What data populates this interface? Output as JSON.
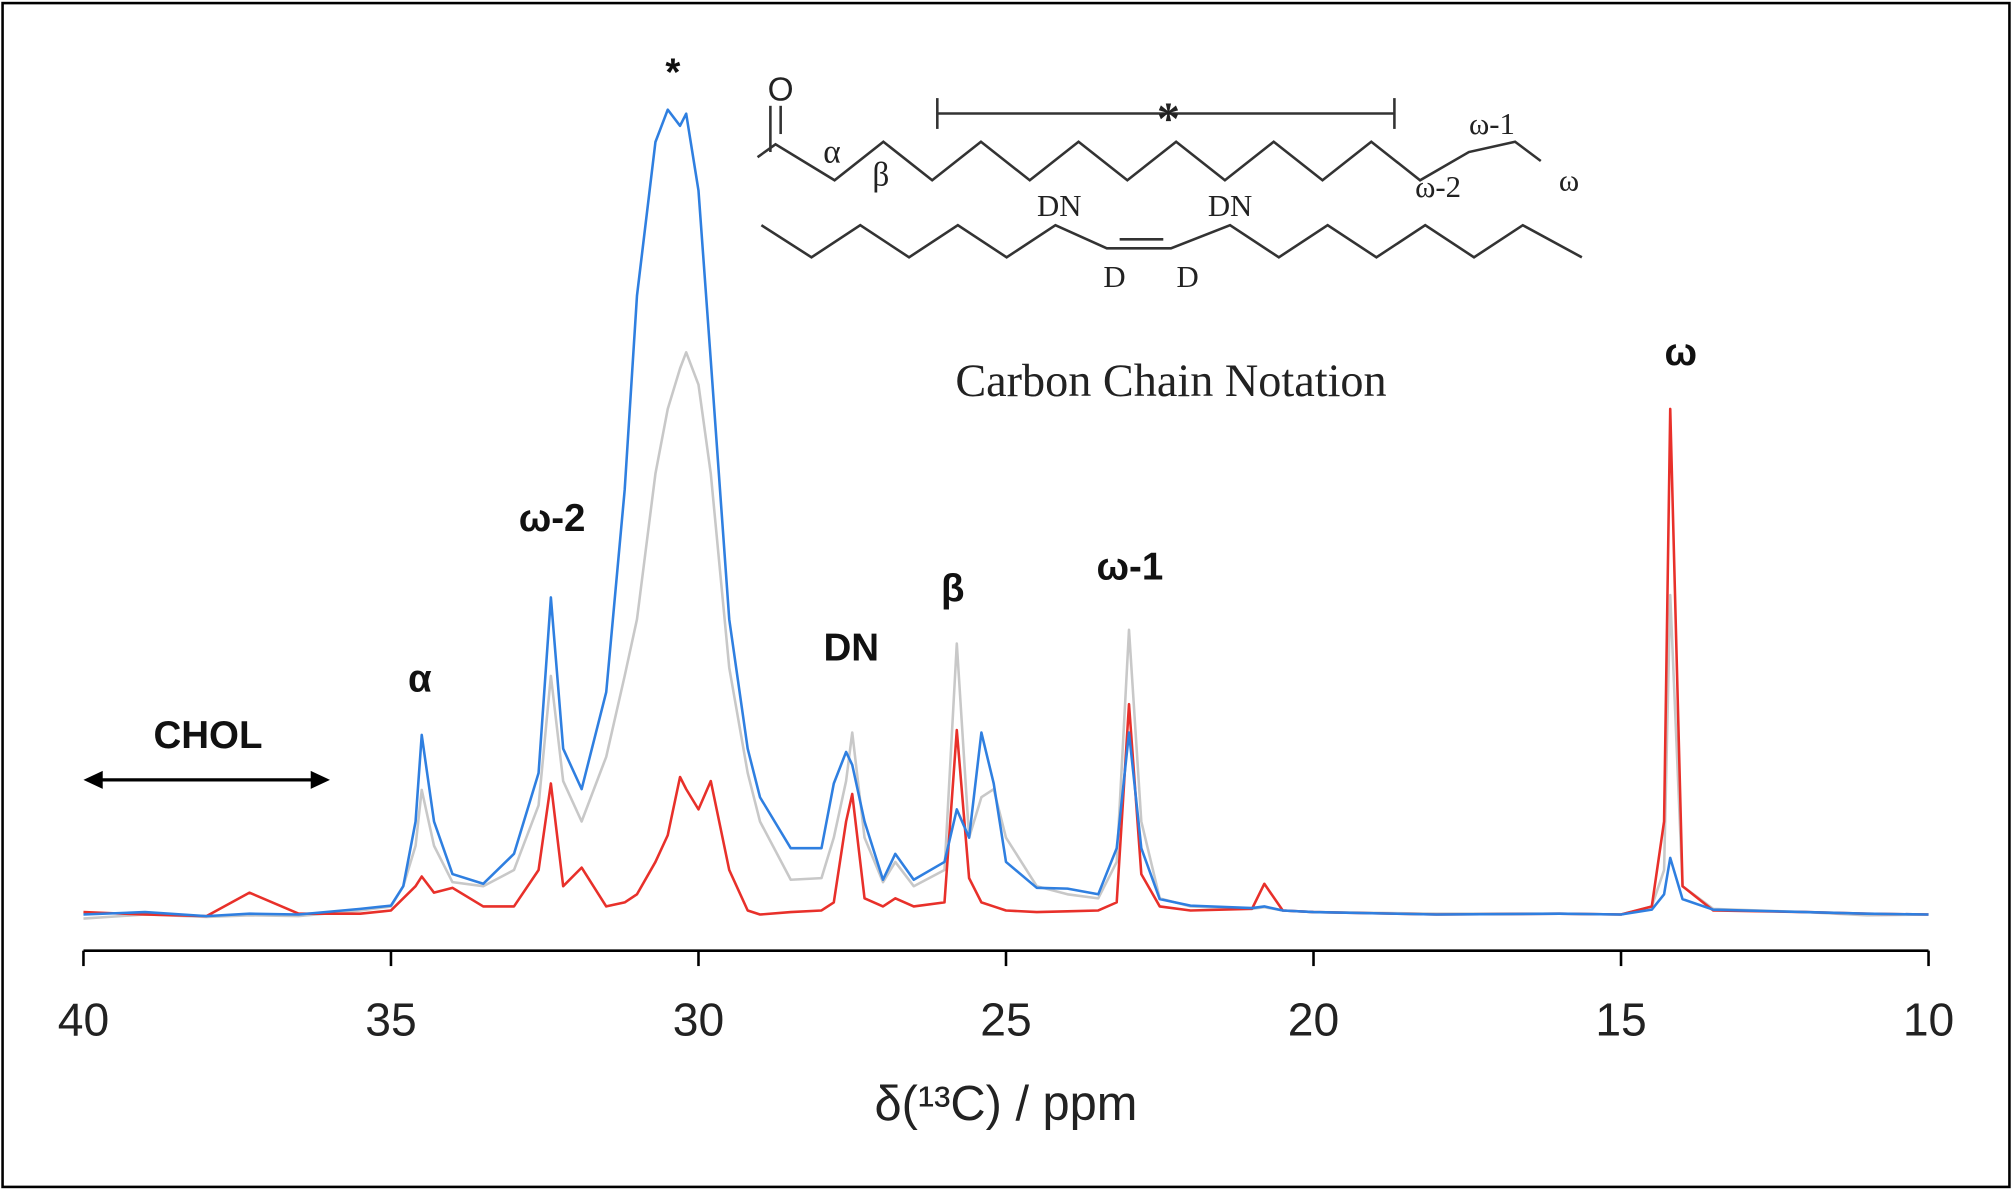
{
  "chart_data": {
    "type": "line",
    "x_label": "δ(¹³C) / ppm",
    "xlim": [
      40,
      10
    ],
    "xticks": [
      40,
      35,
      30,
      25,
      20,
      15,
      10
    ],
    "ylim": [
      0,
      100
    ],
    "x": [
      40,
      39,
      38,
      37.3,
      36.5,
      35.5,
      35,
      34.8,
      34.6,
      34.5,
      34.3,
      34,
      33.5,
      33,
      32.6,
      32.4,
      32.2,
      31.9,
      31.5,
      31.2,
      31,
      30.7,
      30.5,
      30.3,
      30.2,
      30,
      29.8,
      29.5,
      29.2,
      29,
      28.5,
      28,
      27.8,
      27.6,
      27.5,
      27.3,
      27,
      26.8,
      26.5,
      26,
      25.8,
      25.6,
      25.4,
      25.2,
      25,
      24.5,
      24,
      23.5,
      23.2,
      23,
      22.8,
      22.5,
      22,
      21,
      20.8,
      20.5,
      20,
      18,
      16,
      15,
      14.5,
      14.3,
      14.2,
      14,
      13.5,
      12,
      11,
      10
    ],
    "series": [
      {
        "color": "#c8c8c8",
        "values": [
          0,
          0.5,
          0.2,
          0.4,
          0.3,
          1,
          1.5,
          4,
          9,
          15.9,
          9,
          4.5,
          4,
          6,
          14,
          30,
          17,
          12,
          20,
          30,
          37,
          55,
          63,
          68,
          70,
          66,
          55,
          31,
          18,
          12,
          4.8,
          5,
          10,
          17,
          23,
          10,
          4.5,
          7,
          4,
          6,
          34,
          10,
          15,
          16,
          10,
          4,
          3,
          2.5,
          7,
          35.7,
          12,
          2.5,
          1.5,
          1.2,
          1.4,
          1,
          0.8,
          0.6,
          0.6,
          0.5,
          1.5,
          6,
          40,
          4,
          1.2,
          0.8,
          0.4,
          0.5
        ]
      },
      {
        "color": "#e8302a",
        "values": [
          0.8,
          0.5,
          0.3,
          3.2,
          0.6,
          0.6,
          1,
          2.5,
          4,
          5.2,
          3.2,
          3.8,
          1.5,
          1.5,
          6,
          16.7,
          4,
          6.3,
          1.5,
          2,
          3,
          7,
          10.3,
          17.5,
          16,
          13.5,
          17,
          6,
          1,
          0.5,
          0.8,
          1,
          2,
          12,
          15.4,
          2.5,
          1.5,
          2.5,
          1.5,
          2,
          23.3,
          5,
          2,
          1.5,
          1,
          0.8,
          0.9,
          1,
          2,
          26.5,
          5.5,
          1.5,
          1,
          1.2,
          4.3,
          1,
          0.8,
          0.5,
          0.6,
          0.5,
          1.5,
          12,
          63,
          4,
          1,
          0.8,
          0.6,
          0.5
        ]
      },
      {
        "color": "#2f7fe0",
        "values": [
          0.5,
          0.8,
          0.3,
          0.6,
          0.5,
          1.2,
          1.6,
          4,
          12,
          22.7,
          12,
          5.5,
          4.3,
          8,
          18,
          39.7,
          21,
          16,
          28,
          53,
          77,
          96,
          100,
          98,
          99.5,
          90,
          69,
          37,
          21,
          15,
          8.7,
          8.7,
          16.7,
          20.6,
          19,
          12,
          4.8,
          8,
          4.8,
          7,
          13.5,
          10,
          23,
          16.7,
          7,
          3.8,
          3.7,
          3,
          8.7,
          23,
          8.7,
          2.4,
          1.6,
          1.3,
          1.5,
          1,
          0.8,
          0.5,
          0.6,
          0.5,
          1.1,
          3,
          7.5,
          2.4,
          1.1,
          0.8,
          0.6,
          0.5
        ]
      }
    ],
    "annotations": [
      "α",
      "ω-2",
      "*",
      "DN",
      "β",
      "ω-1",
      "ω",
      "CHOL"
    ]
  },
  "diagram": {
    "title": "Carbon Chain Notation",
    "labels": [
      "O",
      "α",
      "β",
      "*",
      "ω-1",
      "ω-2",
      "ω",
      "DN",
      "DN",
      "D",
      "D"
    ]
  }
}
